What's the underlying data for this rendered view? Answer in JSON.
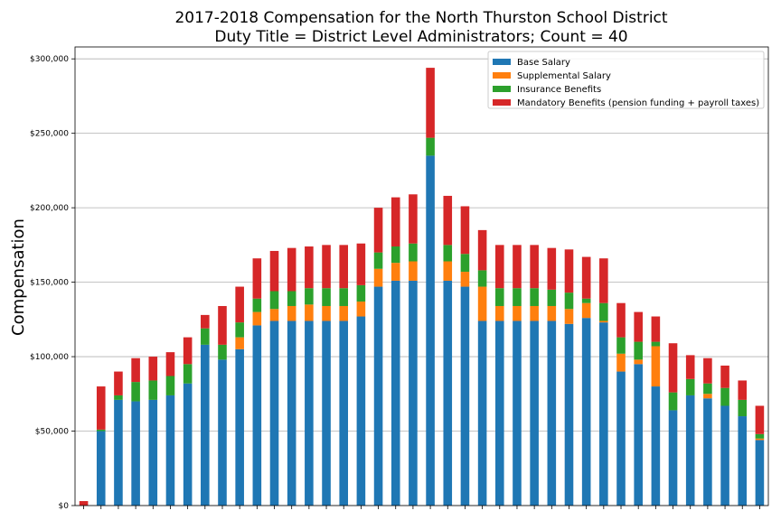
{
  "chart_data": {
    "type": "bar",
    "stacked": true,
    "title_line1": "2017-2018 Compensation for the North Thurston School District",
    "title_line2": "Duty Title = District Level Administrators; Count = 40",
    "xlabel": "",
    "ylabel": "Compensation",
    "ylim": [
      0,
      308000
    ],
    "yticks": [
      0,
      50000,
      100000,
      150000,
      200000,
      250000,
      300000
    ],
    "ytick_labels": [
      "$0",
      "$50,000",
      "$100,000",
      "$150,000",
      "$200,000",
      "$250,000",
      "$300,000"
    ],
    "grid": true,
    "legend_position": "top-right",
    "series": [
      {
        "name": "Base Salary",
        "color": "#1f77b4",
        "values": [
          0,
          50000,
          71000,
          70000,
          71000,
          74000,
          82000,
          108000,
          98000,
          105000,
          121000,
          124000,
          124000,
          124000,
          124000,
          124000,
          127000,
          147000,
          151000,
          151000,
          235000,
          151000,
          147000,
          124000,
          124000,
          124000,
          124000,
          124000,
          122000,
          126000,
          123000,
          90000,
          95000,
          80000,
          64000,
          74000,
          72000,
          67000,
          60000,
          44000
        ]
      },
      {
        "name": "Supplemental Salary",
        "color": "#ff7f0e",
        "values": [
          0,
          0,
          0,
          0,
          0,
          0,
          0,
          0,
          0,
          8000,
          9000,
          8000,
          10000,
          11000,
          10000,
          10000,
          10000,
          12000,
          12000,
          13000,
          0,
          13000,
          10000,
          23000,
          10000,
          10000,
          10000,
          10000,
          10000,
          10000,
          1000,
          12000,
          3000,
          27000,
          0,
          0,
          3000,
          0,
          0,
          1000
        ]
      },
      {
        "name": "Insurance Benefits",
        "color": "#2ca02c",
        "values": [
          0,
          1000,
          3000,
          13000,
          13000,
          13000,
          13000,
          11000,
          10000,
          10000,
          9000,
          12000,
          10000,
          11000,
          12000,
          12000,
          11000,
          11000,
          11000,
          12000,
          12000,
          11000,
          12000,
          11000,
          12000,
          12000,
          12000,
          11000,
          11000,
          3000,
          12000,
          11000,
          12000,
          3000,
          12000,
          11000,
          7000,
          12000,
          11000,
          3000
        ]
      },
      {
        "name": "Mandatory Benefits (pension funding + payroll taxes)",
        "color": "#d62728",
        "values": [
          3000,
          29000,
          16000,
          16000,
          16000,
          16000,
          18000,
          9000,
          26000,
          24000,
          27000,
          27000,
          29000,
          28000,
          29000,
          29000,
          28000,
          30000,
          33000,
          33000,
          47000,
          33000,
          32000,
          27000,
          29000,
          29000,
          29000,
          28000,
          29000,
          28000,
          30000,
          23000,
          20000,
          17000,
          33000,
          16000,
          17000,
          15000,
          13000,
          19000
        ]
      }
    ]
  }
}
